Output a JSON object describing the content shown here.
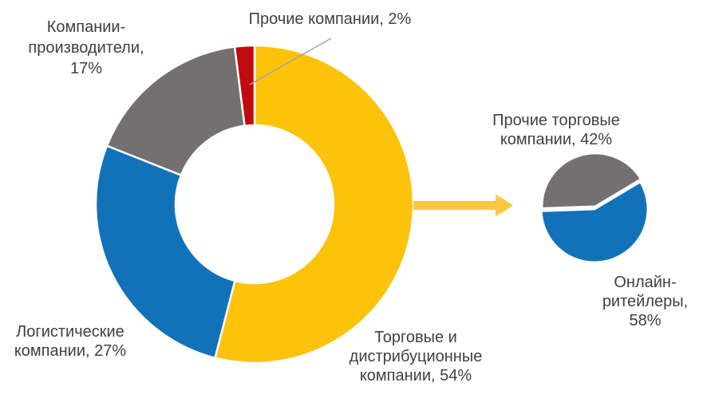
{
  "page": {
    "background_color": "#FFFFFF",
    "text_color": "#404040"
  },
  "decorations": {
    "slice_border_color": "#FFFFFF",
    "leader_line_color": "#A3A3A3",
    "arrow_main_color": "#F8C73E",
    "arrow_edge_color": "#FBDA7C"
  },
  "chart_data": [
    {
      "type": "pie",
      "subtype": "donut",
      "name": "market-structure-donut",
      "inner_radius_ratio": 0.5,
      "start_angle_deg": 0,
      "clockwise": true,
      "slices": [
        {
          "key": "trade-distribution",
          "label": "Торговые и дистрибуционные компании",
          "value_pct": 54,
          "color": "#FDC20A",
          "label_lines": [
            "Торговые и",
            "дистрибуционные",
            "компании, 54%"
          ]
        },
        {
          "key": "logistics",
          "label": "Логистические компании",
          "value_pct": 27,
          "color": "#1272B9",
          "label_lines": [
            "Логистические",
            "компании, 27%"
          ]
        },
        {
          "key": "producers",
          "label": "Компании-производители",
          "value_pct": 17,
          "color": "#747071",
          "label_lines": [
            "Компании-",
            "производители,",
            "17%"
          ]
        },
        {
          "key": "other-companies",
          "label": "Прочие компании",
          "value_pct": 2,
          "color": "#C00B10",
          "label_lines": [
            "Прочие компании, 2%"
          ]
        }
      ]
    },
    {
      "type": "pie",
      "name": "trade-companies-breakdown-pie",
      "start_angle_deg": 268,
      "clockwise": true,
      "slices": [
        {
          "key": "other-trade-companies",
          "label": "Прочие торговые компании",
          "value_pct": 42,
          "color": "#747071",
          "label_lines": [
            "Прочие торговые",
            "компании, 42%"
          ],
          "explode_offset": [
            1,
            -3
          ]
        },
        {
          "key": "online-retailers",
          "label": "Онлайн-ритейлеры",
          "value_pct": 58,
          "color": "#1272B9",
          "label_lines": [
            "Онлайн-",
            "ритейлеры,",
            "58%"
          ]
        }
      ]
    }
  ]
}
